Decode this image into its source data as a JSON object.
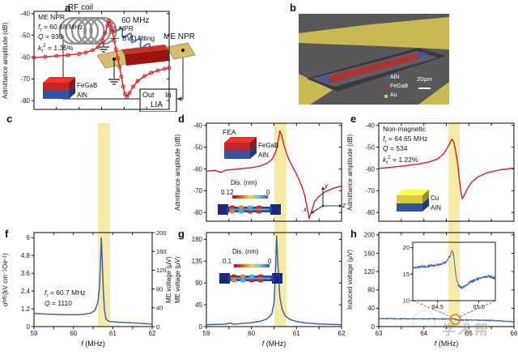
{
  "watermark": "学术帮",
  "panel_labels": {
    "a": "a",
    "b": "b",
    "c": "c",
    "d": "d",
    "e": "e",
    "f": "f",
    "g": "g",
    "h": "h"
  },
  "panel_a": {
    "rf_coil": "RF coil",
    "frequency": "60 MHz",
    "device": "ME NPR",
    "out": "Out",
    "in": "In",
    "lia": "LIA"
  },
  "panel_b": {
    "legend": [
      {
        "label": "AlN",
        "color": "#4b5fb2"
      },
      {
        "label": "FeGaB",
        "color": "#b23530"
      },
      {
        "label": "Au",
        "color": "#d3c64e"
      }
    ],
    "scale_label": "20μm"
  },
  "colors": {
    "red": "#cf2125",
    "blue": "#3f63a9",
    "band": "#f1e286",
    "circle": "#e2862b",
    "frame": "#1a1a1a"
  },
  "chart_data": {
    "c": {
      "type": "line",
      "xlim": [
        59,
        62
      ],
      "ylim": [
        -84,
        -39
      ],
      "xticks": [
        59,
        59.5,
        60,
        60.5,
        61,
        61.5,
        62
      ],
      "yticks": [
        -40,
        -50,
        -60,
        -70,
        -80
      ],
      "ylabel": [
        {
          "t": "Admittance amplitude (dB)"
        }
      ],
      "band": [
        60.55,
        60.8
      ],
      "title": "ME NPR",
      "info": [
        [
          {
            "i": "f",
            "sub": "r"
          },
          {
            "t": " = 60.68 MHz"
          }
        ],
        [
          {
            "i": "Q"
          },
          {
            "t": " = 930"
          }
        ],
        [
          {
            "i": "k",
            "sub": "t"
          },
          {
            "sup": "2"
          },
          {
            "t": " = 1.35%"
          }
        ]
      ],
      "legend": [
        {
          "marker": "circle",
          "label": "NPR"
        },
        {
          "marker": "line",
          "label": "BVD fitting"
        }
      ],
      "inset3d": {
        "top": "#c32723",
        "bottom": "#3353a8",
        "labels": [
          "FeGaB",
          "AlN"
        ]
      },
      "series": [
        {
          "name": "NPR / BVD fitting",
          "color": "red",
          "width": 1.4,
          "marker": true,
          "points": [
            [
              59,
              -60.2
            ],
            [
              59.25,
              -59.9
            ],
            [
              59.5,
              -59.5
            ],
            [
              59.75,
              -59.1
            ],
            [
              60,
              -58.5
            ],
            [
              60.15,
              -57.9
            ],
            [
              60.3,
              -56.9
            ],
            [
              60.42,
              -55.5
            ],
            [
              60.52,
              -52.5
            ],
            [
              60.58,
              -49
            ],
            [
              60.63,
              -45.5
            ],
            [
              60.66,
              -43.3
            ],
            [
              60.7,
              -44.8
            ],
            [
              60.74,
              -48.5
            ],
            [
              60.78,
              -52.5
            ],
            [
              60.82,
              -56.5
            ],
            [
              60.86,
              -60.5
            ],
            [
              60.9,
              -64.5
            ],
            [
              60.94,
              -69
            ],
            [
              60.98,
              -73.5
            ],
            [
              61.02,
              -77
            ],
            [
              61.06,
              -78.2
            ],
            [
              61.12,
              -76.5
            ],
            [
              61.2,
              -73.5
            ],
            [
              61.3,
              -71
            ],
            [
              61.45,
              -68.8
            ],
            [
              61.6,
              -67.2
            ],
            [
              61.75,
              -66.2
            ],
            [
              61.9,
              -65.4
            ],
            [
              62,
              -65
            ]
          ]
        }
      ]
    },
    "d": {
      "type": "line",
      "xlim": [
        59,
        62
      ],
      "ylim": [
        -84,
        -39
      ],
      "xticks": [
        59,
        59.5,
        60,
        60.5,
        61,
        61.5,
        62
      ],
      "yticks": [
        -40,
        -50,
        -60,
        -70,
        -80
      ],
      "ylabel": [
        {
          "t": "Admittance amplitude (dB)"
        }
      ],
      "band": [
        60.5,
        60.75
      ],
      "title": "FEA",
      "inset3d": {
        "top": "#c32723",
        "bottom": "#3353a8",
        "labels": [
          "FeGaB",
          "AlN"
        ]
      },
      "modeshape": {
        "label": "Dis. (nm)",
        "max": "0.12",
        "min": "0"
      },
      "coord_axes": {
        "x": "x",
        "y": "y",
        "z": "z"
      },
      "series": [
        {
          "name": "FEA admittance",
          "color": "red",
          "width": 1.4,
          "points": [
            [
              59,
              -61
            ],
            [
              59.2,
              -60.7
            ],
            [
              59.32,
              -61.6
            ],
            [
              59.42,
              -60.6
            ],
            [
              59.7,
              -60
            ],
            [
              60,
              -59.4
            ],
            [
              60.2,
              -58.6
            ],
            [
              60.35,
              -57.4
            ],
            [
              60.47,
              -55.3
            ],
            [
              60.55,
              -51.5
            ],
            [
              60.6,
              -46.5
            ],
            [
              60.63,
              -42.5
            ],
            [
              60.67,
              -44.5
            ],
            [
              60.72,
              -49
            ],
            [
              60.78,
              -53
            ],
            [
              60.85,
              -56.5
            ],
            [
              60.95,
              -60.5
            ],
            [
              61.05,
              -64.5
            ],
            [
              61.12,
              -68
            ],
            [
              61.18,
              -72
            ],
            [
              61.24,
              -78
            ],
            [
              61.28,
              -82.8
            ],
            [
              61.34,
              -79
            ],
            [
              61.4,
              -75
            ],
            [
              61.5,
              -72.5
            ],
            [
              61.65,
              -70.3
            ],
            [
              61.8,
              -69
            ],
            [
              62,
              -67.8
            ]
          ]
        }
      ]
    },
    "e": {
      "type": "line",
      "xlim": [
        63,
        66
      ],
      "ylim": [
        -84,
        -39
      ],
      "xticks": [
        63,
        63.5,
        64,
        64.5,
        65,
        65.5,
        66
      ],
      "yticks": [
        -40,
        -50,
        -60,
        -70,
        -80
      ],
      "ylabel": [
        {
          "t": "Admittance amplitude (dB)"
        }
      ],
      "band": [
        64.55,
        64.78
      ],
      "title": "Non-magnetic",
      "info": [
        [
          {
            "i": "f",
            "sub": "r"
          },
          {
            "t": " = 64.65 MHz"
          }
        ],
        [
          {
            "i": "Q"
          },
          {
            "t": " = 534"
          }
        ],
        [
          {
            "i": "k",
            "sub": "t"
          },
          {
            "sup": "2"
          },
          {
            "t": " = 1.22%"
          }
        ]
      ],
      "inset3d": {
        "top": "#d8c93f",
        "bottom": "#3353a8",
        "labels": [
          "Cu",
          "AlN"
        ]
      },
      "series": [
        {
          "name": "Non-magnetic admittance",
          "color": "red",
          "width": 1.4,
          "points": [
            [
              63,
              -59.8
            ],
            [
              63.3,
              -59.2
            ],
            [
              63.6,
              -58.5
            ],
            [
              63.9,
              -57.7
            ],
            [
              64.1,
              -56.9
            ],
            [
              64.3,
              -55.5
            ],
            [
              64.45,
              -52.8
            ],
            [
              64.55,
              -49.3
            ],
            [
              64.62,
              -46.3
            ],
            [
              64.66,
              -47.5
            ],
            [
              64.7,
              -51
            ],
            [
              64.74,
              -56
            ],
            [
              64.78,
              -63
            ],
            [
              64.82,
              -70
            ],
            [
              64.85,
              -73.6
            ],
            [
              64.9,
              -72
            ],
            [
              64.97,
              -69
            ],
            [
              65.05,
              -66.3
            ],
            [
              65.2,
              -63.7
            ],
            [
              65.4,
              -61.8
            ],
            [
              65.7,
              -60.4
            ],
            [
              66,
              -59.6
            ]
          ]
        }
      ]
    },
    "f": {
      "type": "line",
      "xlim": [
        59,
        62
      ],
      "ylim": [
        0,
        6.35
      ],
      "xticks": [
        59,
        59.5,
        60,
        60.5,
        61,
        61.5,
        62
      ],
      "xlabeled": [
        59,
        60,
        61,
        62
      ],
      "yticks": [
        0,
        1.2,
        2.4,
        3.6,
        4.8,
        6
      ],
      "ylabel": [
        {
          "t": "α",
          "sub": "ME"
        },
        {
          "t": " (kV cm"
        },
        {
          "sup": "−1"
        },
        {
          "t": " Oe"
        },
        {
          "sup": "−1"
        },
        {
          "t": ")"
        }
      ],
      "xlabel": [
        {
          "i": "f"
        },
        {
          "t": " (MHz)"
        }
      ],
      "band": [
        60.55,
        60.82
      ],
      "info": [
        [
          {
            "i": "f",
            "sub": "r"
          },
          {
            "t": " = 60.7 MHz"
          }
        ],
        [
          {
            "i": "Q"
          },
          {
            "t": " = 1110"
          }
        ]
      ],
      "right_axis": {
        "ylim": [
          0,
          200
        ],
        "yticks": [
          0,
          40,
          80,
          120,
          160,
          200
        ],
        "label": [
          {
            "t": "ME voltage (μV)"
          }
        ]
      },
      "series": [
        {
          "name": "ME coupling coefficient",
          "color": "blue",
          "width": 1.5,
          "points": [
            [
              59,
              0.88
            ],
            [
              59.4,
              0.84
            ],
            [
              59.8,
              0.8
            ],
            [
              60.1,
              0.8
            ],
            [
              60.3,
              0.84
            ],
            [
              60.45,
              0.92
            ],
            [
              60.55,
              1.1
            ],
            [
              60.62,
              1.6
            ],
            [
              60.66,
              2.6
            ],
            [
              60.69,
              4.3
            ],
            [
              60.71,
              6.0
            ],
            [
              60.73,
              4.6
            ],
            [
              60.76,
              2.4
            ],
            [
              60.79,
              1.1
            ],
            [
              60.83,
              0.5
            ],
            [
              60.9,
              0.35
            ],
            [
              61.1,
              0.3
            ],
            [
              61.4,
              0.27
            ],
            [
              61.7,
              0.22
            ],
            [
              62,
              0.17
            ]
          ]
        }
      ]
    },
    "g": {
      "type": "line",
      "xlim": [
        59,
        62
      ],
      "ylim": [
        0,
        194
      ],
      "xticks": [
        59,
        59.5,
        60,
        60.5,
        61,
        61.5,
        62
      ],
      "xlabeled": [
        59,
        60,
        61,
        62
      ],
      "yticks": [
        0,
        45,
        90,
        135,
        180
      ],
      "ylabel": [
        {
          "t": "ME voltage (μV)"
        }
      ],
      "xlabel": [
        {
          "i": "f"
        },
        {
          "t": " (MHz)"
        }
      ],
      "band": [
        60.5,
        60.75
      ],
      "modeshape": {
        "label": "Dis. (nm)",
        "max": "0.1",
        "min": "0"
      },
      "series": [
        {
          "name": "Simulated ME voltage",
          "color": "blue",
          "width": 1.5,
          "points": [
            [
              59,
              4
            ],
            [
              59.4,
              5
            ],
            [
              59.55,
              7
            ],
            [
              59.6,
              5
            ],
            [
              60,
              8
            ],
            [
              60.2,
              11
            ],
            [
              60.35,
              16
            ],
            [
              60.45,
              26
            ],
            [
              60.5,
              48
            ],
            [
              60.53,
              105
            ],
            [
              60.56,
              187
            ],
            [
              60.59,
              125
            ],
            [
              60.63,
              62
            ],
            [
              60.68,
              36
            ],
            [
              60.75,
              22
            ],
            [
              60.85,
              15
            ],
            [
              61,
              10.5
            ],
            [
              61.2,
              7.5
            ],
            [
              61.5,
              5.5
            ],
            [
              62,
              4
            ]
          ]
        }
      ]
    },
    "h": {
      "type": "line",
      "xlim": [
        63,
        66
      ],
      "ylim": [
        0,
        205
      ],
      "xticks": [
        63,
        63.5,
        64,
        64.5,
        65,
        65.5,
        66
      ],
      "xlabeled": [
        63,
        64,
        65,
        66
      ],
      "yticks": [
        0,
        40,
        80,
        120,
        160,
        200
      ],
      "ylabel": [
        {
          "t": "Induced voltage (μV)"
        }
      ],
      "xlabel": [
        {
          "i": "f"
        },
        {
          "t": " (MHz)"
        }
      ],
      "band": [
        64.6,
        64.8
      ],
      "highlight_circle": {
        "x": 64.7,
        "y": 15.8
      },
      "series": [
        {
          "name": "Induced voltage",
          "color": "blue",
          "width": 1.1,
          "noise": 1.2,
          "points": [
            [
              63,
              17.6
            ],
            [
              63.3,
              17.3
            ],
            [
              63.6,
              17.1
            ],
            [
              63.9,
              16.9
            ],
            [
              64.2,
              16.7
            ],
            [
              64.45,
              16.6
            ],
            [
              64.6,
              16.9
            ],
            [
              64.66,
              17.4
            ],
            [
              64.7,
              16
            ],
            [
              64.74,
              13.8
            ],
            [
              64.85,
              14.4
            ],
            [
              65,
              14.3
            ],
            [
              65.2,
              14
            ],
            [
              65.5,
              13.2
            ],
            [
              65.75,
              12
            ],
            [
              66,
              10.5
            ]
          ]
        }
      ],
      "inset": {
        "xlim": [
          64.2,
          65.2
        ],
        "ylim": [
          10,
          21
        ],
        "xticks": [
          64.5,
          65.0
        ],
        "yticks": [
          10,
          15,
          20
        ],
        "decimals": 1,
        "series": [
          {
            "name": "Induced voltage (zoom)",
            "color": "blue",
            "width": 0.9,
            "noise": 0.25,
            "points": [
              [
                64.2,
                16.2
              ],
              [
                64.3,
                16.4
              ],
              [
                64.42,
                16.6
              ],
              [
                64.52,
                16.8
              ],
              [
                64.6,
                17.2
              ],
              [
                64.65,
                18.4
              ],
              [
                64.675,
                19.3
              ],
              [
                64.695,
                18.6
              ],
              [
                64.71,
                16.5
              ],
              [
                64.73,
                14
              ],
              [
                64.76,
                12.7
              ],
              [
                64.8,
                12.4
              ],
              [
                64.87,
                13.2
              ],
              [
                64.95,
                13.9
              ],
              [
                65.05,
                14.4
              ],
              [
                65.12,
                14.6
              ],
              [
                65.2,
                14.2
              ]
            ]
          }
        ]
      }
    }
  }
}
